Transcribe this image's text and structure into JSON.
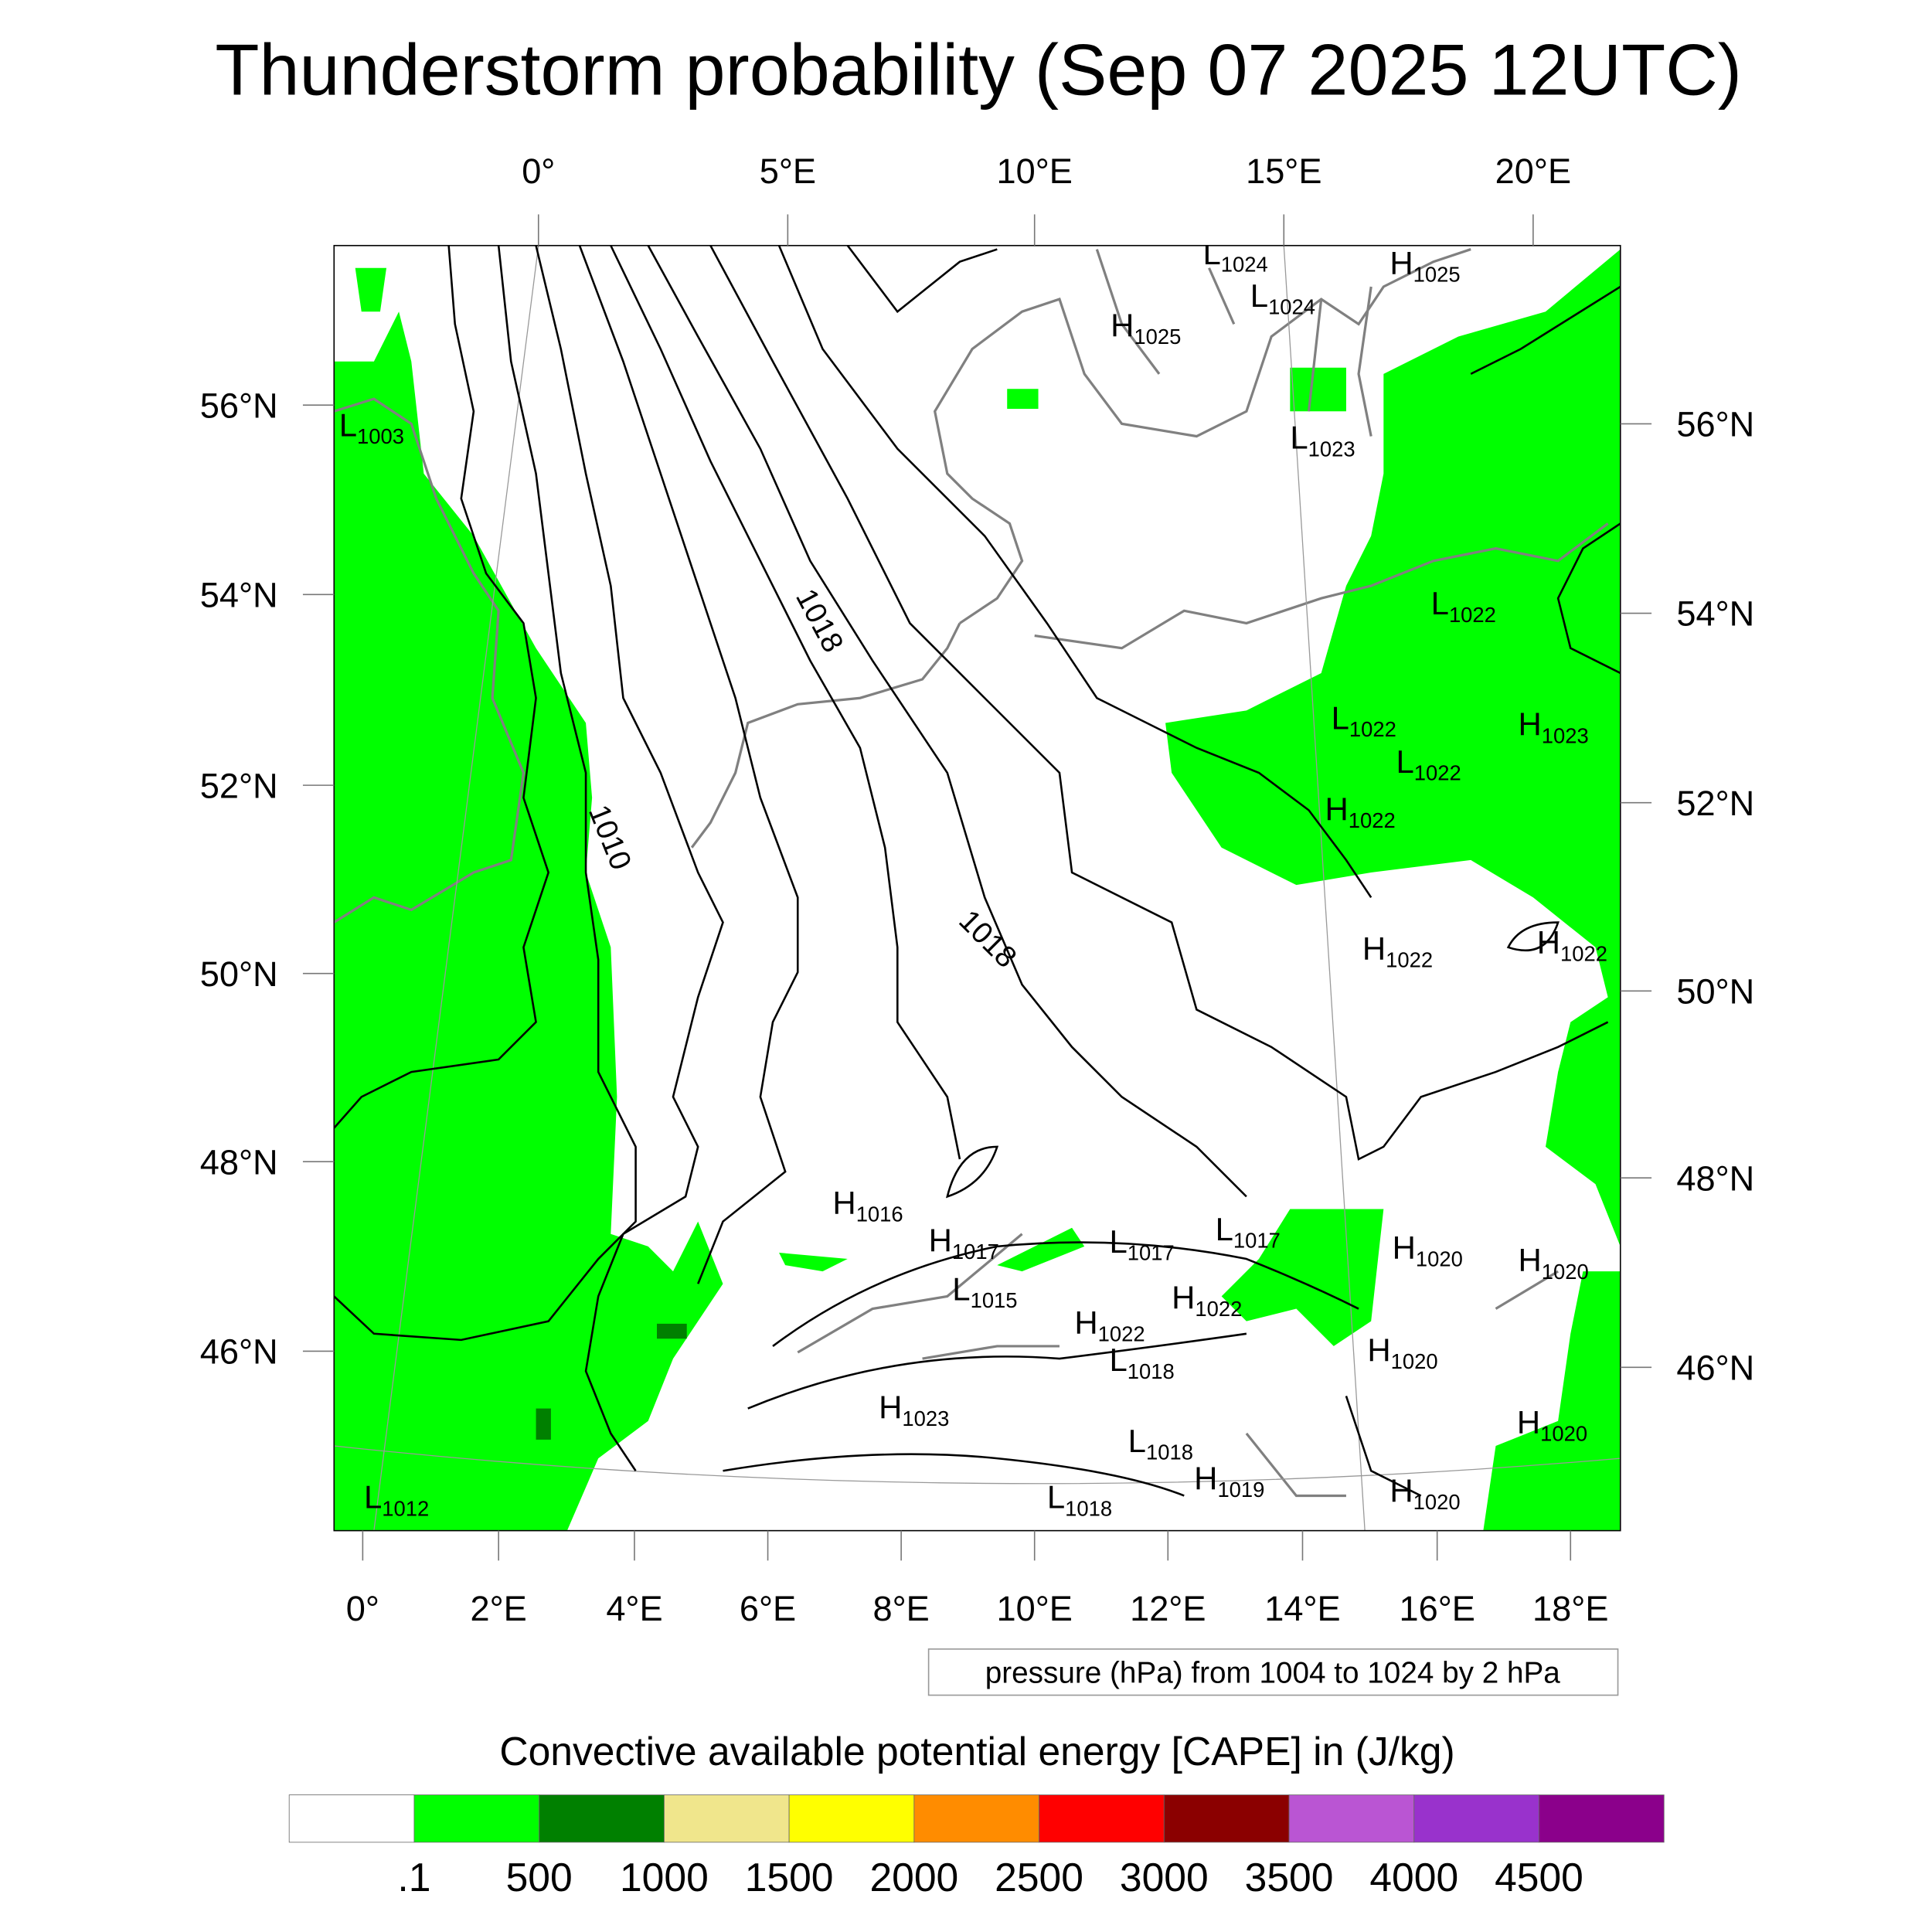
{
  "title": "Thunderstorm probability (Sep 07 2025 12UTC)",
  "top_lon_labels": [
    "0°",
    "5°E",
    "10°E",
    "15°E",
    "20°E"
  ],
  "bottom_lon_labels": [
    "0°",
    "2°E",
    "4°E",
    "6°E",
    "8°E",
    "10°E",
    "12°E",
    "14°E",
    "16°E",
    "18°E"
  ],
  "left_lat_labels": [
    "56°N",
    "54°N",
    "52°N",
    "50°N",
    "48°N",
    "46°N"
  ],
  "right_lat_labels": [
    "56°N",
    "54°N",
    "52°N",
    "50°N",
    "48°N",
    "46°N"
  ],
  "contour_labels": [
    "1018",
    "1010",
    "1018"
  ],
  "pressure_centers": [
    {
      "type": "L",
      "value": "1024"
    },
    {
      "type": "L",
      "value": "1024"
    },
    {
      "type": "H",
      "value": "1025"
    },
    {
      "type": "H",
      "value": "1025"
    },
    {
      "type": "L",
      "value": "1003"
    },
    {
      "type": "L",
      "value": "1023"
    },
    {
      "type": "L",
      "value": "1022"
    },
    {
      "type": "L",
      "value": "1022"
    },
    {
      "type": "H",
      "value": "1023"
    },
    {
      "type": "L",
      "value": "1022"
    },
    {
      "type": "H",
      "value": "1022"
    },
    {
      "type": "H",
      "value": "1022"
    },
    {
      "type": "H",
      "value": "1022"
    },
    {
      "type": "H",
      "value": "1016"
    },
    {
      "type": "H",
      "value": "1017"
    },
    {
      "type": "L",
      "value": "1017"
    },
    {
      "type": "L",
      "value": "1017"
    },
    {
      "type": "H",
      "value": "1020"
    },
    {
      "type": "H",
      "value": "1020"
    },
    {
      "type": "L",
      "value": "1015"
    },
    {
      "type": "H",
      "value": "1022"
    },
    {
      "type": "H",
      "value": "1022"
    },
    {
      "type": "L",
      "value": "1018"
    },
    {
      "type": "H",
      "value": "1020"
    },
    {
      "type": "H",
      "value": "1023"
    },
    {
      "type": "L",
      "value": "1018"
    },
    {
      "type": "H",
      "value": "1019"
    },
    {
      "type": "H",
      "value": "1020"
    },
    {
      "type": "L",
      "value": "1018"
    },
    {
      "type": "L",
      "value": "1012"
    },
    {
      "type": "H",
      "value": "1020"
    }
  ],
  "contour_info": "pressure (hPa) from 1004 to 1024 by 2 hPa",
  "colorbar": {
    "title": "Convective available potential energy [CAPE] in (J/kg)",
    "colors": [
      "#ffffff",
      "#00ff00",
      "#008000",
      "#f0e68c",
      "#ffff00",
      "#ff8c00",
      "#ff0000",
      "#8b0000",
      "#ba55d3",
      "#9932cc",
      "#8b008b"
    ],
    "labels": [
      ".1",
      "500",
      "1000",
      "1500",
      "2000",
      "2500",
      "3000",
      "3500",
      "4000",
      "4500"
    ]
  },
  "chart_data": {
    "type": "heatmap",
    "title": "Thunderstorm probability (Sep 07 2025 12UTC)",
    "field": "CAPE (J/kg)",
    "levels": [
      0.1,
      500,
      1000,
      1500,
      2000,
      2500,
      3000,
      3500,
      4000,
      4500
    ],
    "contour_field": "pressure (hPa)",
    "contour_range": [
      1004,
      1024
    ],
    "contour_interval": 2
  }
}
